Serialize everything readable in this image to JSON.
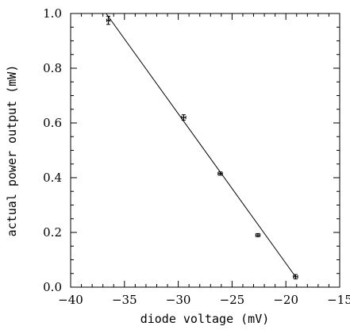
{
  "chart_data": {
    "type": "scatter",
    "title": "",
    "xlabel": "diode voltage (mV)",
    "ylabel": "actual power output (mW)",
    "xlim": [
      -40,
      -15
    ],
    "ylim": [
      0.0,
      1.0
    ],
    "x_ticks": [
      -40,
      -35,
      -30,
      -25,
      -20,
      -15
    ],
    "y_ticks": [
      0.0,
      0.2,
      0.4,
      0.6,
      0.8,
      1.0
    ],
    "x_tick_labels": [
      "−40",
      "−35",
      "−30",
      "−25",
      "−20",
      "−15"
    ],
    "y_tick_labels": [
      "0.0",
      "0.2",
      "0.4",
      "0.6",
      "0.8",
      "1.0"
    ],
    "grid": false,
    "series": [
      {
        "x": [
          -36.5,
          -29.5,
          -26.1,
          -22.6,
          -19.1
        ],
        "y": [
          0.975,
          0.62,
          0.415,
          0.19,
          0.038
        ],
        "xerr": [
          0.15,
          0.2,
          0.2,
          0.2,
          0.2
        ],
        "yerr": [
          0.015,
          0.01,
          0.006,
          0.006,
          0.008
        ]
      }
    ],
    "fit_line": {
      "x": [
        -36.7,
        -19.1
      ],
      "y": [
        1.0,
        0.038
      ]
    }
  }
}
